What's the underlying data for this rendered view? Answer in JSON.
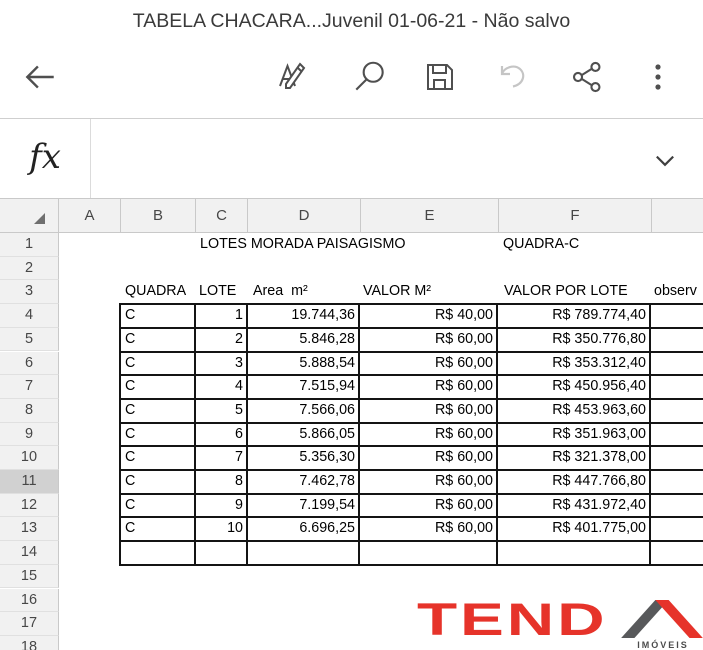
{
  "window": {
    "title": "TABELA CHACARA...Juvenil 01-06-21 - Não salvo"
  },
  "toolbar": {
    "icons": [
      "back-arrow",
      "format-text",
      "search",
      "save",
      "undo",
      "share",
      "overflow-menu"
    ],
    "undo_disabled": true
  },
  "formula_bar": {
    "fx_label": "fx",
    "value": "",
    "expand_icon": "chevron-down"
  },
  "grid": {
    "select_all_icon": "select-all-triangle",
    "column_letters": [
      "A",
      "B",
      "C",
      "D",
      "E",
      "F",
      ""
    ],
    "row_numbers": [
      "1",
      "2",
      "3",
      "4",
      "5",
      "6",
      "7",
      "8",
      "9",
      "10",
      "11",
      "12",
      "13",
      "14",
      "15",
      "16",
      "17",
      "18"
    ],
    "selected_row": "11"
  },
  "sheet": {
    "title_cell": "LOTES MORADA PAISAGISMO",
    "quadra_cell": "QUADRA-C",
    "table": {
      "headers": [
        "QUADRA",
        "LOTE",
        "Area  m²",
        "VALOR M²",
        "VALOR POR LOTE",
        "observ"
      ],
      "rows": [
        [
          "C",
          "1",
          "19.744,36",
          "R$ 40,00",
          "R$ 789.774,40",
          ""
        ],
        [
          "C",
          "2",
          "5.846,28",
          "R$ 60,00",
          "R$ 350.776,80",
          ""
        ],
        [
          "C",
          "3",
          "5.888,54",
          "R$ 60,00",
          "R$ 353.312,40",
          ""
        ],
        [
          "C",
          "4",
          "7.515,94",
          "R$ 60,00",
          "R$ 450.956,40",
          ""
        ],
        [
          "C",
          "5",
          "7.566,06",
          "R$ 60,00",
          "R$ 453.963,60",
          ""
        ],
        [
          "C",
          "6",
          "5.866,05",
          "R$ 60,00",
          "R$ 351.963,00",
          ""
        ],
        [
          "C",
          "7",
          "5.356,30",
          "R$ 60,00",
          "R$ 321.378,00",
          ""
        ],
        [
          "C",
          "8",
          "7.462,78",
          "R$ 60,00",
          "R$ 447.766,80",
          ""
        ],
        [
          "C",
          "9",
          "7.199,54",
          "R$ 60,00",
          "R$ 431.972,40",
          ""
        ],
        [
          "C",
          "10",
          "6.696,25",
          "R$ 60,00",
          "R$ 401.775,00",
          ""
        ],
        [
          "",
          "",
          "",
          "",
          "",
          ""
        ]
      ]
    }
  },
  "logo": {
    "brand": "TEND",
    "roof_letter": "A",
    "subtitle": "IMÓVEIS"
  },
  "colors": {
    "selection_green": "#217346",
    "logo_red": "#e6332a",
    "logo_dark_gray": "#58595b",
    "header_gray": "#f1f1f1",
    "table_border": "#141414"
  }
}
